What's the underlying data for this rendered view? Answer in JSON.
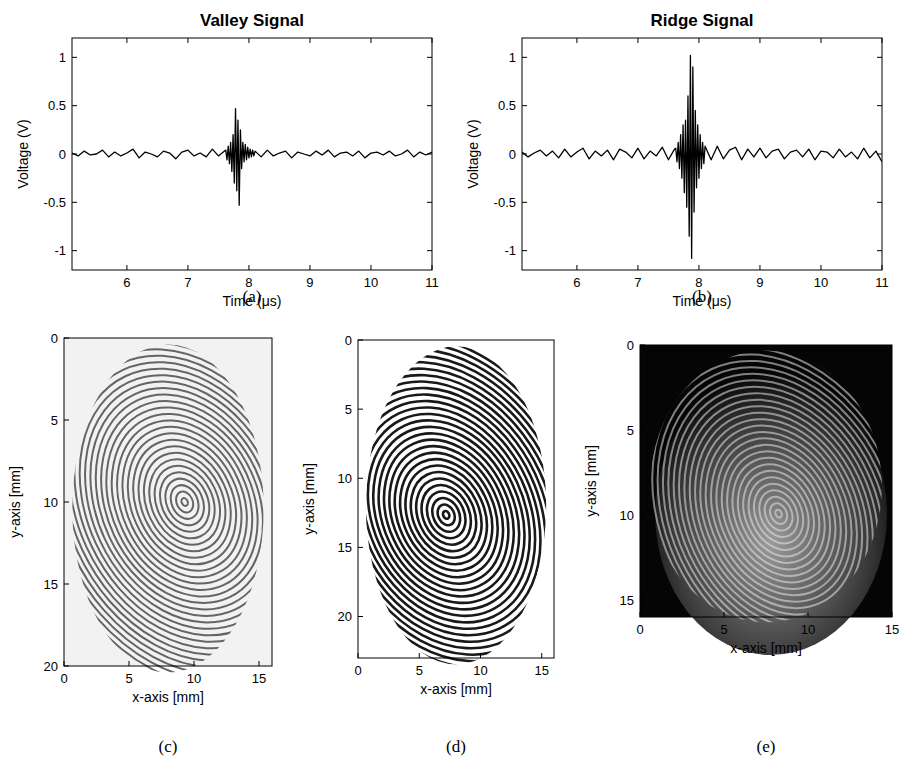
{
  "chart_data": [
    {
      "type": "line",
      "title": "Valley Signal",
      "xlabel": "Time (μs)",
      "ylabel": "Voltage (V)",
      "caption": "(a)",
      "x": [
        5.1,
        5.2,
        5.3,
        5.4,
        5.5,
        5.6,
        5.7,
        5.8,
        5.9,
        6.0,
        6.1,
        6.2,
        6.3,
        6.4,
        6.5,
        6.6,
        6.7,
        6.8,
        6.9,
        7.0,
        7.1,
        7.2,
        7.3,
        7.4,
        7.5,
        7.6,
        7.62,
        7.64,
        7.66,
        7.68,
        7.7,
        7.72,
        7.74,
        7.76,
        7.78,
        7.8,
        7.82,
        7.84,
        7.86,
        7.88,
        7.9,
        7.92,
        7.94,
        7.96,
        7.98,
        8.0,
        8.02,
        8.04,
        8.06,
        8.08,
        8.1,
        8.2,
        8.3,
        8.4,
        8.5,
        8.6,
        8.7,
        8.8,
        8.9,
        9.0,
        9.1,
        9.2,
        9.3,
        9.4,
        9.5,
        9.6,
        9.7,
        9.8,
        9.9,
        10.0,
        10.1,
        10.2,
        10.3,
        10.4,
        10.5,
        10.6,
        10.7,
        10.8,
        10.9,
        11.0
      ],
      "values": [
        0.01,
        -0.02,
        0.03,
        -0.01,
        0.0,
        0.04,
        -0.03,
        0.02,
        -0.02,
        0.01,
        0.05,
        -0.04,
        0.02,
        0.0,
        -0.03,
        0.03,
        0.01,
        -0.05,
        0.02,
        0.04,
        -0.02,
        0.01,
        -0.03,
        0.05,
        -0.02,
        0.03,
        0.04,
        -0.06,
        0.08,
        -0.1,
        0.12,
        -0.18,
        0.2,
        -0.3,
        0.47,
        -0.38,
        0.35,
        -0.53,
        0.25,
        -0.15,
        0.12,
        -0.08,
        0.1,
        -0.06,
        0.07,
        -0.04,
        0.05,
        -0.03,
        0.04,
        -0.02,
        0.03,
        -0.03,
        0.04,
        -0.02,
        0.01,
        0.03,
        -0.04,
        0.02,
        0.0,
        -0.02,
        0.03,
        -0.01,
        0.04,
        -0.03,
        0.01,
        0.02,
        -0.02,
        0.03,
        -0.04,
        0.01,
        0.02,
        -0.01,
        0.03,
        -0.02,
        0.0,
        0.04,
        -0.03,
        0.02,
        -0.01,
        0.02
      ],
      "xlim": [
        5.1,
        11
      ],
      "ylim": [
        -1.2,
        1.2
      ],
      "xticks": [
        6,
        7,
        8,
        9,
        10,
        11
      ],
      "yticks": [
        -1,
        -0.5,
        0,
        0.5,
        1
      ],
      "color": "#000000",
      "grid": false
    },
    {
      "type": "line",
      "title": "Ridge Signal",
      "xlabel": "Time (μs)",
      "ylabel": "Voltage (V)",
      "caption": "(b)",
      "x": [
        5.1,
        5.2,
        5.3,
        5.4,
        5.5,
        5.6,
        5.7,
        5.8,
        5.9,
        6.0,
        6.1,
        6.2,
        6.3,
        6.4,
        6.5,
        6.6,
        6.7,
        6.8,
        6.9,
        7.0,
        7.1,
        7.2,
        7.3,
        7.4,
        7.5,
        7.6,
        7.62,
        7.64,
        7.66,
        7.68,
        7.7,
        7.72,
        7.74,
        7.76,
        7.78,
        7.8,
        7.82,
        7.84,
        7.86,
        7.88,
        7.9,
        7.92,
        7.94,
        7.96,
        7.98,
        8.0,
        8.02,
        8.04,
        8.06,
        8.08,
        8.1,
        8.2,
        8.3,
        8.4,
        8.5,
        8.6,
        8.7,
        8.8,
        8.9,
        9.0,
        9.1,
        9.2,
        9.3,
        9.4,
        9.5,
        9.6,
        9.7,
        9.8,
        9.9,
        10.0,
        10.1,
        10.2,
        10.3,
        10.4,
        10.5,
        10.6,
        10.7,
        10.8,
        10.9,
        11.0
      ],
      "values": [
        0.02,
        -0.03,
        0.01,
        0.04,
        -0.02,
        0.03,
        -0.04,
        0.05,
        -0.03,
        0.02,
        0.06,
        -0.05,
        0.03,
        -0.02,
        0.04,
        -0.06,
        0.05,
        0.02,
        -0.04,
        0.06,
        -0.05,
        0.03,
        -0.02,
        0.07,
        -0.06,
        0.05,
        0.06,
        -0.08,
        0.12,
        -0.15,
        0.2,
        -0.25,
        0.3,
        -0.4,
        0.35,
        -0.55,
        0.6,
        -0.85,
        1.02,
        -1.08,
        0.9,
        -0.6,
        0.45,
        -0.35,
        0.3,
        -0.25,
        0.2,
        -0.15,
        0.12,
        -0.1,
        0.08,
        -0.06,
        0.08,
        -0.05,
        0.04,
        0.07,
        -0.06,
        0.05,
        -0.03,
        0.06,
        -0.04,
        0.03,
        0.05,
        -0.05,
        0.02,
        0.04,
        -0.03,
        0.05,
        -0.06,
        0.03,
        0.02,
        -0.04,
        0.05,
        -0.03,
        0.02,
        -0.05,
        0.06,
        -0.04,
        0.03,
        -0.08
      ],
      "xlim": [
        5.1,
        11
      ],
      "ylim": [
        -1.2,
        1.2
      ],
      "xticks": [
        6,
        7,
        8,
        9,
        10,
        11
      ],
      "yticks": [
        -1,
        -0.5,
        0,
        0.5,
        1
      ],
      "color": "#000000",
      "grid": false
    },
    {
      "type": "image",
      "caption": "(c)",
      "xlabel": "x-axis [mm]",
      "ylabel": "y-axis [mm]",
      "xlim": [
        0,
        16
      ],
      "ylim": [
        20,
        0
      ],
      "xticks": [
        0,
        5,
        10,
        15
      ],
      "yticks": [
        0,
        5,
        10,
        15,
        20
      ],
      "color": "#555555"
    },
    {
      "type": "image",
      "caption": "(d)",
      "xlabel": "x-axis [mm]",
      "ylabel": "y-axis [mm]",
      "xlim": [
        0,
        16
      ],
      "ylim": [
        23,
        0
      ],
      "xticks": [
        0,
        5,
        10,
        15
      ],
      "yticks": [
        0,
        5,
        10,
        15,
        20
      ],
      "color": "#000000"
    },
    {
      "type": "image",
      "caption": "(e)",
      "xlabel": "x-axis [mm]",
      "ylabel": "y-axis [mm]",
      "xlim": [
        0,
        15
      ],
      "ylim": [
        16,
        0
      ],
      "xticks": [
        0,
        5,
        10,
        15
      ],
      "yticks": [
        0,
        5,
        10,
        15
      ],
      "color": "#e6e6e6"
    }
  ]
}
